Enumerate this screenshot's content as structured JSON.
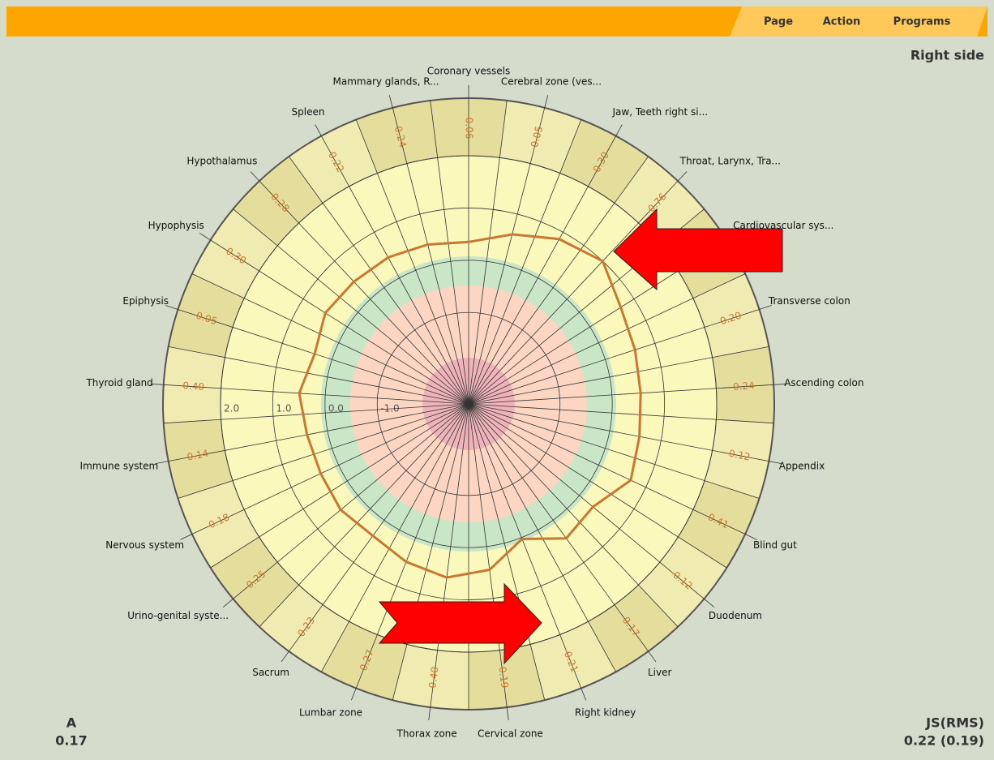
{
  "menu": [
    "Page",
    "Action",
    "Programs"
  ],
  "side": "Right side",
  "left_stat": {
    "label": "A",
    "value": "0.17"
  },
  "right_stat": {
    "label": "JS(RMS)",
    "value": "0.22 (0.19)"
  },
  "chart_data": {
    "type": "radar",
    "categories": [
      "Coronary vessels",
      "Cerebral zone (ves...",
      "Jaw, Teeth right si...",
      "Throat, Larynx, Tra...",
      "Cardiovascular sys...",
      "Transverse colon",
      "Ascending colon",
      "Appendix",
      "Blind gut",
      "Duodenum",
      "Liver",
      "Right kidney",
      "Cervical zone",
      "Thorax zone",
      "Lumbar zone",
      "Sacrum",
      "Urino-genital syste...",
      "Nervous system",
      "Immune system",
      "Thyroid gland",
      "Epiphysis",
      "Hypophysis",
      "Hypothalamus",
      "Spleen",
      "Mammary glands, R..."
    ],
    "values": [
      0.35,
      0.6,
      0.85,
      1.0,
      0.7,
      0.6,
      0.55,
      0.58,
      0.68,
      0.34,
      0.43,
      0.03,
      0.45,
      0.6,
      0.5,
      0.37,
      0.43,
      0.38,
      0.4,
      0.5,
      0.35,
      0.5,
      0.46,
      0.45,
      0.4
    ],
    "band_values": [
      0.06,
      0.05,
      0.3,
      0.76,
      null,
      0.2,
      0.24,
      0.12,
      0.41,
      -0.12,
      0.17,
      -0.21,
      0.19,
      0.4,
      0.27,
      0.23,
      0.25,
      0.18,
      0.14,
      0.4,
      0.05,
      0.3,
      0.28,
      0.22,
      0.24
    ],
    "band_value_labels": [
      "0.06",
      "0.05",
      "0.30",
      "0.76",
      null,
      "0.20",
      "0.24",
      "0.12",
      "0.41",
      "-0.12",
      "0.17",
      "-0.21",
      "0.19",
      "0.40",
      "0.27",
      "0.23",
      "0.25",
      "0.18",
      "0.14",
      "0.40",
      "0.05",
      "0.30",
      "0.28",
      "0.22",
      "0.24"
    ],
    "color": "#c87832",
    "rlim": [
      -2.75,
      2.0
    ],
    "rticks": [
      {
        "value": 2,
        "label": "2.0"
      },
      {
        "value": 1,
        "label": "1.0"
      },
      {
        "value": 0,
        "label": "0.0"
      },
      {
        "value": -1,
        "label": "-1.0"
      }
    ]
  }
}
